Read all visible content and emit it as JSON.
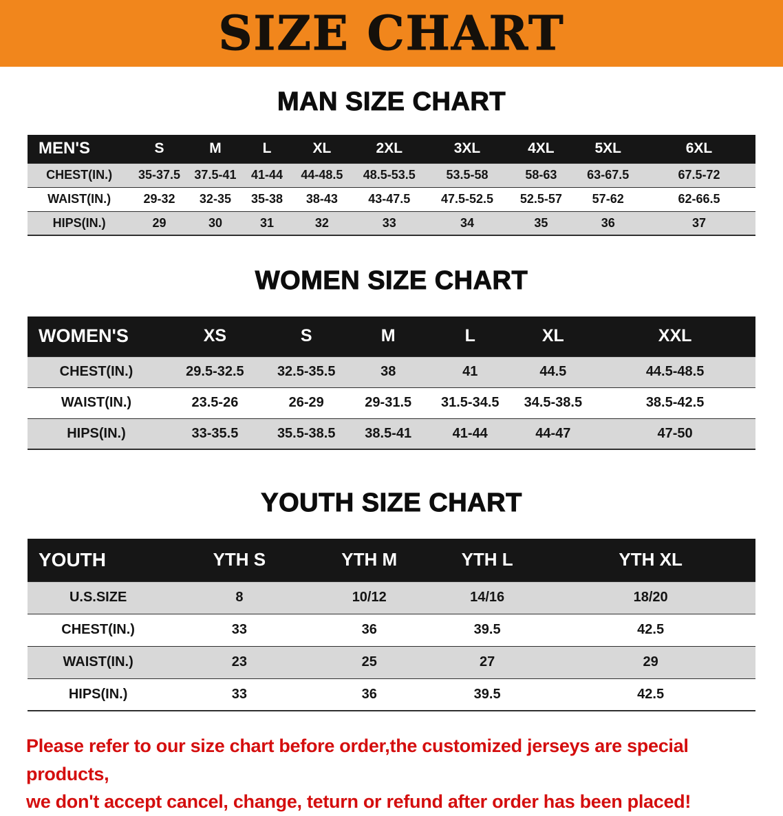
{
  "banner": {
    "title": "SIZE CHART"
  },
  "colors": {
    "banner_orange": "#f1861c",
    "header_black": "#161616",
    "row_gray": "#d8d8d8",
    "notice_red": "#d40e0e"
  },
  "sections": [
    {
      "heading": "MAN SIZE CHART",
      "table": {
        "header": [
          "MEN'S",
          "S",
          "M",
          "L",
          "XL",
          "2XL",
          "3XL",
          "4XL",
          "5XL",
          "6XL"
        ],
        "rows": [
          [
            "CHEST(IN.)",
            "35-37.5",
            "37.5-41",
            "41-44",
            "44-48.5",
            "48.5-53.5",
            "53.5-58",
            "58-63",
            "63-67.5",
            "67.5-72"
          ],
          [
            "WAIST(IN.)",
            "29-32",
            "32-35",
            "35-38",
            "38-43",
            "43-47.5",
            "47.5-52.5",
            "52.5-57",
            "57-62",
            "62-66.5"
          ],
          [
            "HIPS(IN.)",
            "29",
            "30",
            "31",
            "32",
            "33",
            "34",
            "35",
            "36",
            "37"
          ]
        ]
      }
    },
    {
      "heading": "WOMEN SIZE CHART",
      "table": {
        "header": [
          "WOMEN'S",
          "XS",
          "S",
          "M",
          "L",
          "XL",
          "XXL"
        ],
        "rows": [
          [
            "CHEST(IN.)",
            "29.5-32.5",
            "32.5-35.5",
            "38",
            "41",
            "44.5",
            "44.5-48.5"
          ],
          [
            "WAIST(IN.)",
            "23.5-26",
            "26-29",
            "29-31.5",
            "31.5-34.5",
            "34.5-38.5",
            "38.5-42.5"
          ],
          [
            "HIPS(IN.)",
            "33-35.5",
            "35.5-38.5",
            "38.5-41",
            "41-44",
            "44-47",
            "47-50"
          ]
        ]
      }
    },
    {
      "heading": "YOUTH SIZE CHART",
      "table": {
        "header": [
          "YOUTH",
          "YTH S",
          "YTH M",
          "YTH L",
          "YTH XL"
        ],
        "rows": [
          [
            "U.S.SIZE",
            "8",
            "10/12",
            "14/16",
            "18/20"
          ],
          [
            "CHEST(IN.)",
            "33",
            "36",
            "39.5",
            "42.5"
          ],
          [
            "WAIST(IN.)",
            "23",
            "25",
            "27",
            "29"
          ],
          [
            "HIPS(IN.)",
            "33",
            "36",
            "39.5",
            "42.5"
          ]
        ]
      }
    }
  ],
  "footer": {
    "line1": "Please refer to our size chart before order,the customized jerseys are special products,",
    "line2": "we don't accept cancel, change, teturn or refund after order has been placed!"
  }
}
